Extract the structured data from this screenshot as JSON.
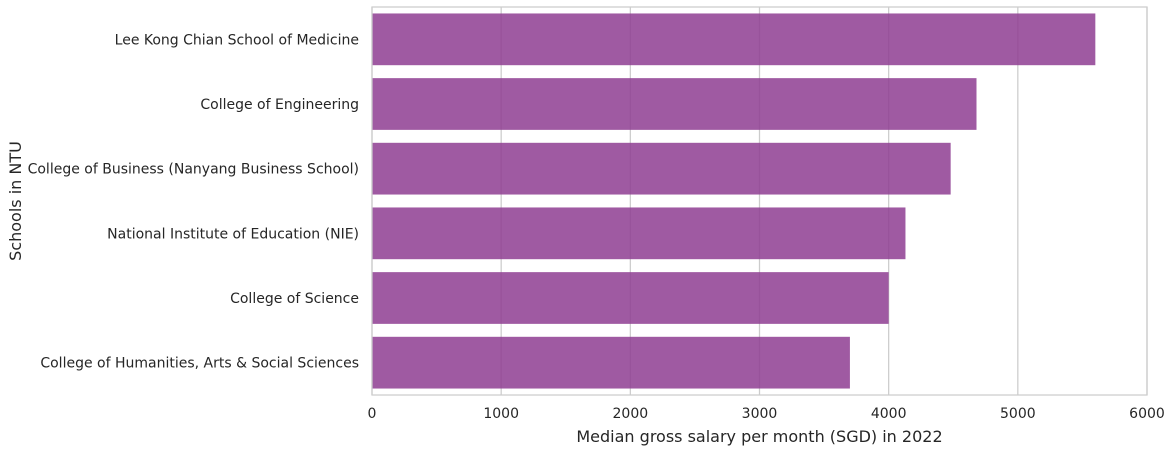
{
  "chart_data": {
    "type": "bar",
    "orientation": "horizontal",
    "categories": [
      "Lee Kong Chian School of Medicine",
      "College of Engineering",
      "College of Business (Nanyang Business School)",
      "National Institute of Education (NIE)",
      "College of Science",
      "College of Humanities, Arts & Social Sciences"
    ],
    "values": [
      5600,
      4680,
      4480,
      4130,
      4000,
      3700
    ],
    "xlabel": "Median gross salary per month (SGD) in 2022",
    "ylabel": "Schools in NTU",
    "xlim": [
      0,
      6000
    ],
    "xticks": [
      0,
      1000,
      2000,
      3000,
      4000,
      5000,
      6000
    ],
    "grid": "vertical",
    "bar_color": "#8E3D92"
  }
}
